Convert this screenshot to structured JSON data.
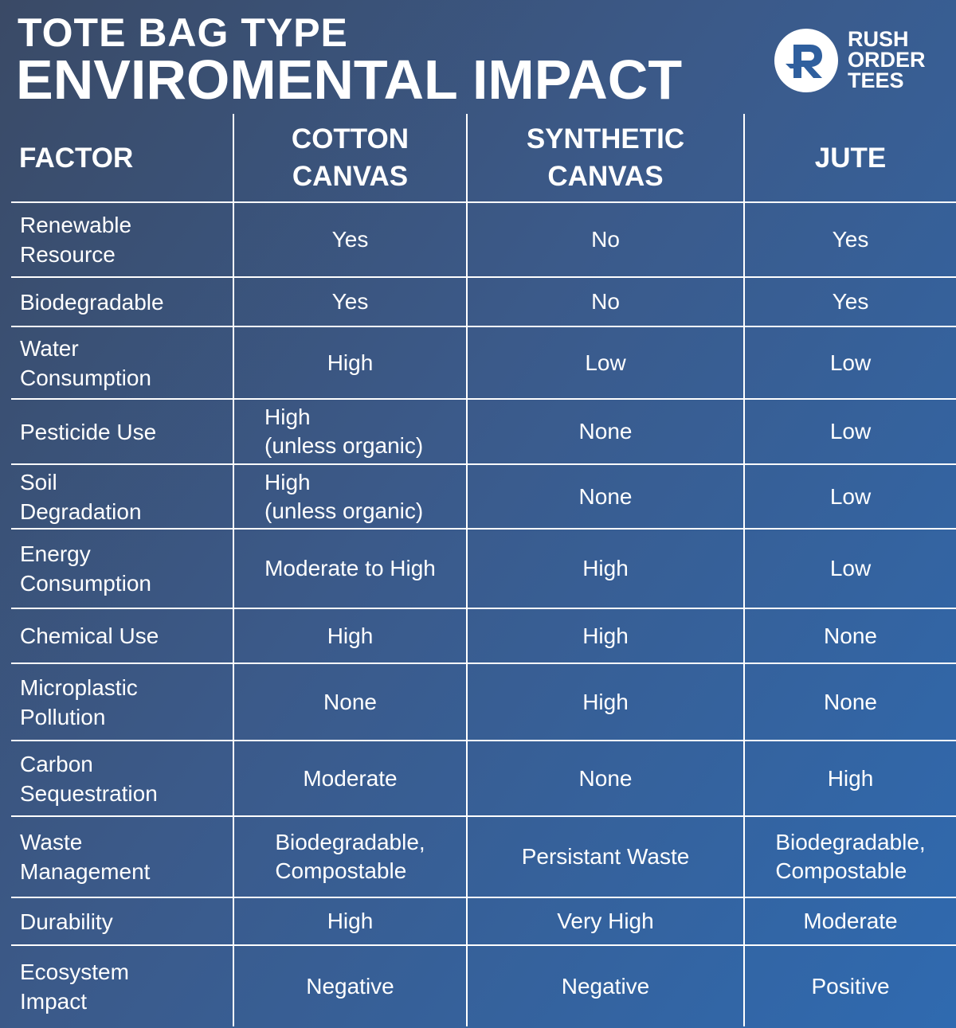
{
  "title": {
    "line1": "TOTE BAG TYPE",
    "line2": "ENVIROMENTAL IMPACT"
  },
  "logo": {
    "icon": "r-logo-icon",
    "line1": "RUSH",
    "line2": "ORDER",
    "line3": "TEES"
  },
  "colors": {
    "background_start": "#3a4a66",
    "background_end": "#2f6ab0",
    "text": "#ffffff",
    "grid": "#ffffff"
  },
  "chart_data": {
    "type": "table",
    "title": "TOTE BAG TYPE ENVIROMENTAL IMPACT",
    "columns": [
      "FACTOR",
      "COTTON\nCANVAS",
      "SYNTHETIC\nCANVAS",
      "JUTE"
    ],
    "rows": [
      [
        "Renewable\nResource",
        "Yes",
        "No",
        "Yes"
      ],
      [
        "Biodegradable",
        "Yes",
        "No",
        "Yes"
      ],
      [
        "Water\nConsumption",
        "High",
        "Low",
        "Low"
      ],
      [
        "Pesticide Use",
        "High\n(unless organic)",
        "None",
        "Low"
      ],
      [
        "Soil\nDegradation",
        "High\n(unless organic)",
        "None",
        "Low"
      ],
      [
        "Energy\nConsumption",
        "Moderate to High",
        "High",
        "Low"
      ],
      [
        "Chemical Use",
        "High",
        "High",
        "None"
      ],
      [
        "Microplastic\nPollution",
        "None",
        "High",
        "None"
      ],
      [
        "Carbon\nSequestration",
        "Moderate",
        "None",
        "High"
      ],
      [
        "Waste\nManagement",
        "Biodegradable,\nCompostable",
        "Persistant Waste",
        "Biodegradable,\nCompostable"
      ],
      [
        "Durability",
        "High",
        "Very High",
        "Moderate"
      ],
      [
        "Ecosystem\nImpact",
        "Negative",
        "Negative",
        "Positive"
      ]
    ]
  }
}
